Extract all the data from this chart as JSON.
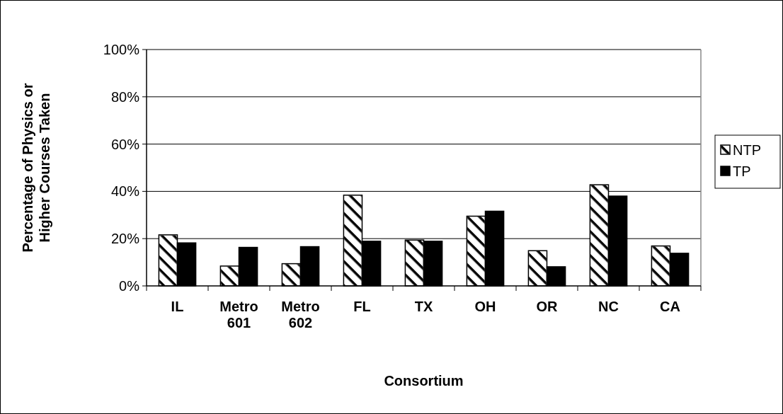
{
  "chart_data": {
    "type": "bar",
    "xlabel": "Consortium",
    "ylabel": "Percentage of Physics or\nHigher Courses Taken",
    "categories": [
      "IL",
      "Metro\n601",
      "Metro\n602",
      "FL",
      "TX",
      "OH",
      "OR",
      "NC",
      "CA"
    ],
    "series": [
      {
        "name": "NTP",
        "color": "#ffffff",
        "values": [
          21.6,
          8.4,
          9.4,
          38.4,
          19.4,
          29.5,
          14.9,
          42.8,
          16.9
        ]
      },
      {
        "name": "TP",
        "color": "#000000",
        "values": [
          18.2,
          16.3,
          16.6,
          18.9,
          18.9,
          31.6,
          8.1,
          38.0,
          13.8
        ]
      }
    ],
    "ylim": [
      0,
      100
    ],
    "yticks": [
      {
        "value": 0,
        "label": "0%"
      },
      {
        "value": 20,
        "label": "20%"
      },
      {
        "value": 40,
        "label": "40%"
      },
      {
        "value": 60,
        "label": "60%"
      },
      {
        "value": 80,
        "label": "80%"
      },
      {
        "value": 100,
        "label": "100%"
      }
    ],
    "grid": "y",
    "legend": "right"
  }
}
